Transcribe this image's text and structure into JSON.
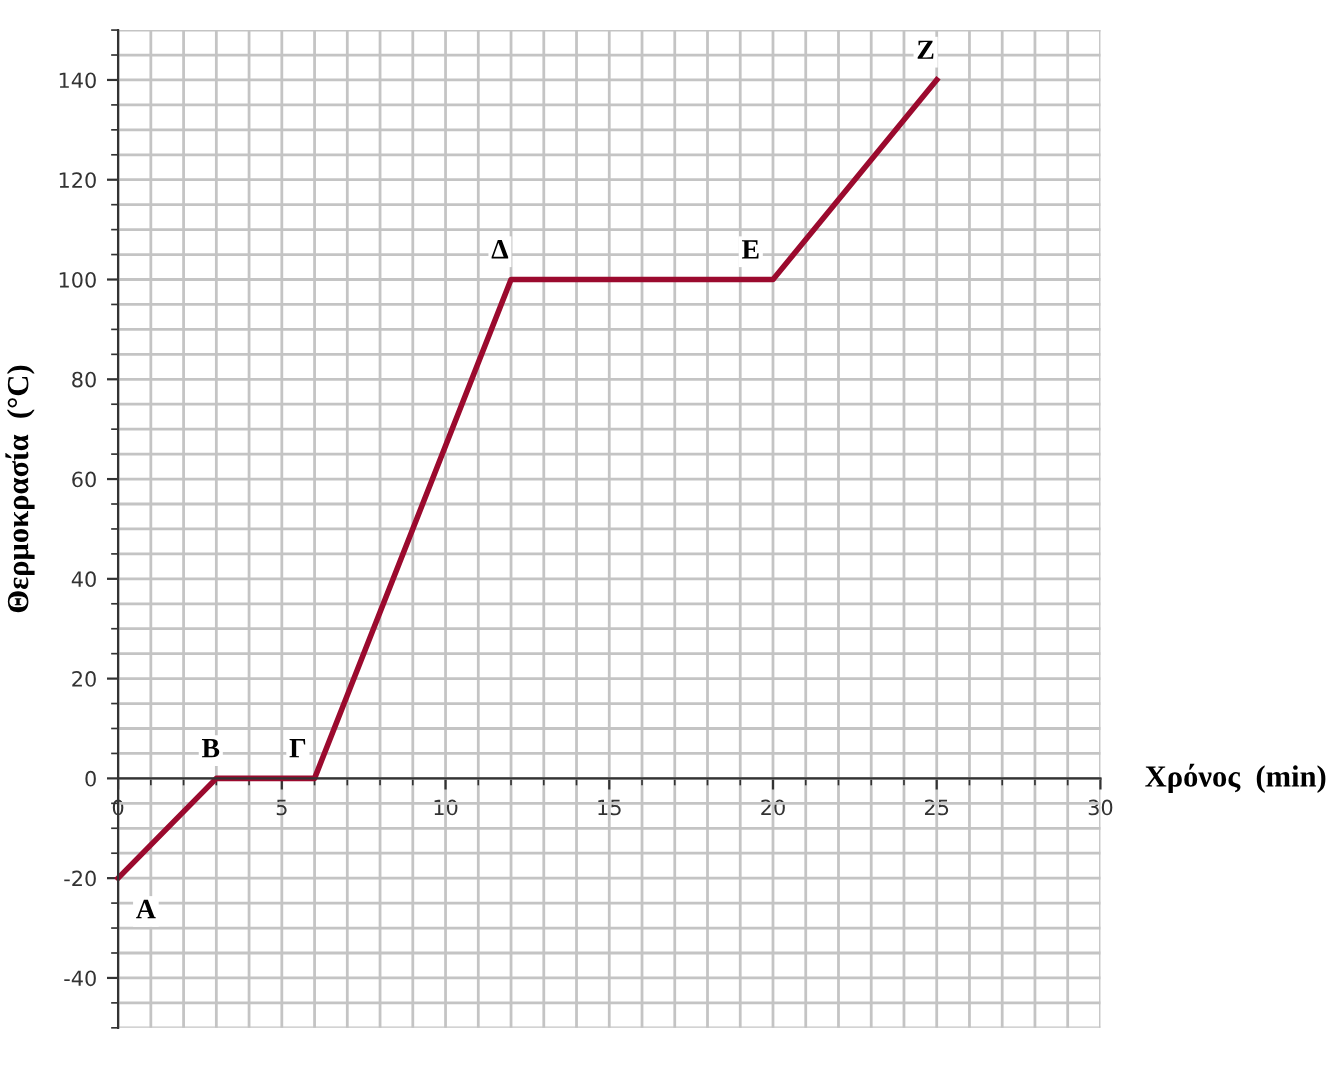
{
  "chart_data": {
    "type": "line",
    "xlabel": "Χρόνος  (min)",
    "ylabel": "Θερμοκρασία  (°C)",
    "x": [
      0,
      3,
      6,
      12,
      20,
      25
    ],
    "series": [
      {
        "color": "#9b0a2e",
        "values": [
          -20,
          0,
          0,
          100,
          100,
          140
        ]
      }
    ],
    "xlim": [
      0,
      30
    ],
    "ylim": [
      -50,
      150
    ],
    "xticks": [
      0,
      5,
      10,
      15,
      20,
      25,
      30
    ],
    "yticks": [
      -40,
      -20,
      0,
      20,
      40,
      60,
      80,
      100,
      120,
      140
    ],
    "grid": true,
    "marker": "none",
    "line_style": "solid",
    "legend": false,
    "annotations": [
      {
        "text": "Α",
        "x": 0,
        "y": -20
      },
      {
        "text": "Β",
        "x": 3,
        "y": 0
      },
      {
        "text": "Γ",
        "x": 6,
        "y": 0
      },
      {
        "text": "Δ",
        "x": 12,
        "y": 100
      },
      {
        "text": "Ε",
        "x": 20,
        "y": 100
      },
      {
        "text": "Ζ",
        "x": 25,
        "y": 140
      }
    ]
  }
}
